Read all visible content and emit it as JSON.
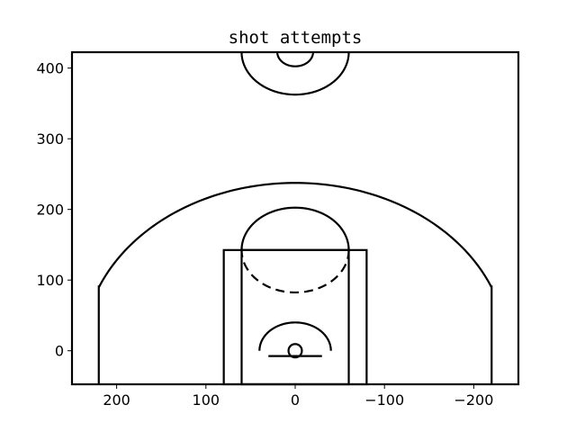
{
  "chart_data": {
    "type": "scatter",
    "title": "shot attempts",
    "xlabel": "",
    "ylabel": "",
    "xlim": [
      250,
      -250
    ],
    "ylim": [
      -47.5,
      422.5
    ],
    "x_inverted": true,
    "x_ticks": [
      200,
      100,
      0,
      -100,
      -200
    ],
    "y_ticks": [
      0,
      100,
      200,
      300,
      400
    ],
    "x_tick_labels": [
      "200",
      "100",
      "0",
      "−100",
      "−200"
    ],
    "y_tick_labels": [
      "0",
      "100",
      "200",
      "300",
      "400"
    ],
    "grid": false,
    "series": [],
    "court": {
      "line_color": "#000000",
      "hoop_radius": 7.5,
      "backboard": {
        "x1": -30,
        "x2": 30,
        "y": -7.5
      },
      "outer_paint": {
        "x": -80,
        "y": -47.5,
        "width": 160,
        "height": 190
      },
      "inner_paint": {
        "x": -60,
        "y": -47.5,
        "width": 120,
        "height": 190
      },
      "free_throw_circle_radius": 60,
      "free_throw_center_y": 142.5,
      "restricted_area_radius": 40,
      "corner_three_x": 220,
      "corner_three_top_y": 92.5,
      "three_point_radius": 237.5,
      "center_court_y": 422.5,
      "center_outer_radius": 60,
      "center_inner_radius": 20,
      "boundary": {
        "x": -250,
        "y": -47.5,
        "width": 500,
        "height": 470
      }
    }
  }
}
